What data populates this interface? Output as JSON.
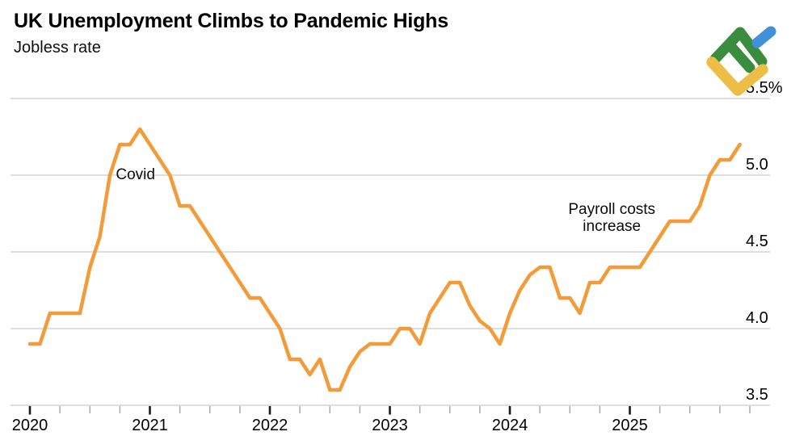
{
  "header": {
    "title": "UK Unemployment Climbs to Pandemic Highs",
    "subtitle": "Jobless rate"
  },
  "logo": {
    "name": "LiteFinance",
    "green": "#3A8C3E",
    "blue": "#4190DB",
    "yellow": "#EDBE45"
  },
  "chart_data": {
    "type": "line",
    "title": "UK Unemployment Climbs to Pandemic Highs",
    "subtitle": "Jobless rate",
    "unit": "%",
    "frequency": "monthly",
    "x_start": "2020-01",
    "x_end": "2025-12",
    "series": [
      {
        "name": "UK jobless rate",
        "values": [
          3.9,
          3.9,
          4.1,
          4.1,
          4.1,
          4.1,
          4.4,
          4.6,
          5.0,
          5.2,
          5.2,
          5.3,
          5.2,
          5.1,
          5.0,
          4.8,
          4.8,
          4.7,
          4.6,
          4.5,
          4.4,
          4.3,
          4.2,
          4.2,
          4.1,
          4.0,
          3.8,
          3.8,
          3.7,
          3.8,
          3.6,
          3.6,
          3.75,
          3.85,
          3.9,
          3.9,
          3.9,
          4.0,
          4.0,
          3.9,
          4.1,
          4.2,
          4.3,
          4.3,
          4.15,
          4.05,
          4.0,
          3.9,
          4.1,
          4.25,
          4.35,
          4.4,
          4.4,
          4.2,
          4.2,
          4.1,
          4.3,
          4.3,
          4.4,
          4.4,
          4.4,
          4.4,
          4.5,
          4.6,
          4.7,
          4.7,
          4.7,
          4.8,
          5.0,
          5.1,
          5.1,
          5.2
        ]
      }
    ],
    "x_axis": {
      "ticks": [
        {
          "year": 2020,
          "label": "2020"
        },
        {
          "year": 2021,
          "label": "2021"
        },
        {
          "year": 2022,
          "label": "2022"
        },
        {
          "year": 2023,
          "label": "2023"
        },
        {
          "year": 2024,
          "label": "2024"
        },
        {
          "year": 2025,
          "label": "2025"
        }
      ],
      "minor_tick_interval_years": 0.25,
      "range": [
        2020,
        2026.15
      ]
    },
    "y_axis": {
      "side": "right",
      "range": [
        3.4,
        5.6
      ],
      "ticks": [
        {
          "value": 5.5,
          "label": "5.5%"
        },
        {
          "value": 5.0,
          "label": "5.0"
        },
        {
          "value": 4.5,
          "label": "4.5"
        },
        {
          "value": 4.0,
          "label": "4.0"
        },
        {
          "value": 3.5,
          "label": "3.5"
        }
      ]
    },
    "grid": "horizontal",
    "legend": "none",
    "annotations": [
      {
        "text": "Covid",
        "x": 2020.88,
        "y": 5.01
      },
      {
        "text": "Payroll costs\nincrease",
        "x": 2024.85,
        "y": 4.73
      }
    ],
    "colors": {
      "line": "#F29B38",
      "grid": "#CBCBC8",
      "axis_text": "#000000",
      "major_tick": "#1a1a1a",
      "minor_tick": "#ABABA8",
      "annotation_text": "#0b0b0b"
    }
  }
}
